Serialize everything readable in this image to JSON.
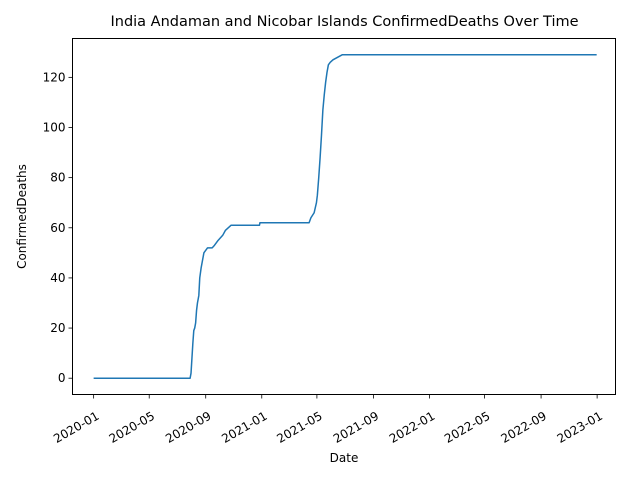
{
  "chart_data": {
    "type": "line",
    "title": "India Andaman and Nicobar Islands ConfirmedDeaths Over Time",
    "xlabel": "Date",
    "ylabel": "ConfirmedDeaths",
    "x_range": [
      "2019-11-16",
      "2023-02-10"
    ],
    "ylim": [
      -6.5,
      135.5
    ],
    "x_ticks": [
      {
        "date": "2020-01-01",
        "label": "2020-01"
      },
      {
        "date": "2020-05-01",
        "label": "2020-05"
      },
      {
        "date": "2020-09-01",
        "label": "2020-09"
      },
      {
        "date": "2021-01-01",
        "label": "2021-01"
      },
      {
        "date": "2021-05-01",
        "label": "2021-05"
      },
      {
        "date": "2021-09-01",
        "label": "2021-09"
      },
      {
        "date": "2022-01-01",
        "label": "2022-01"
      },
      {
        "date": "2022-05-01",
        "label": "2022-05"
      },
      {
        "date": "2022-09-01",
        "label": "2022-09"
      },
      {
        "date": "2023-01-01",
        "label": "2023-01"
      }
    ],
    "y_ticks": [
      0,
      20,
      40,
      60,
      80,
      100,
      120
    ],
    "grid": false,
    "line_color": "#1f77b4",
    "series": [
      {
        "name": "",
        "points": [
          [
            "2020-01-01",
            0
          ],
          [
            "2020-07-29",
            0
          ],
          [
            "2020-07-31",
            2
          ],
          [
            "2020-08-02",
            8
          ],
          [
            "2020-08-04",
            14
          ],
          [
            "2020-08-06",
            19
          ],
          [
            "2020-08-08",
            20
          ],
          [
            "2020-08-10",
            22
          ],
          [
            "2020-08-12",
            27
          ],
          [
            "2020-08-14",
            30
          ],
          [
            "2020-08-17",
            33
          ],
          [
            "2020-08-19",
            40
          ],
          [
            "2020-08-22",
            44
          ],
          [
            "2020-08-25",
            47
          ],
          [
            "2020-08-28",
            50
          ],
          [
            "2020-09-01",
            51
          ],
          [
            "2020-09-05",
            52
          ],
          [
            "2020-09-15",
            52
          ],
          [
            "2020-09-20",
            53
          ],
          [
            "2020-09-28",
            55
          ],
          [
            "2020-10-08",
            57
          ],
          [
            "2020-10-14",
            59
          ],
          [
            "2020-10-20",
            60
          ],
          [
            "2020-10-26",
            61
          ],
          [
            "2020-12-27",
            61
          ],
          [
            "2020-12-28",
            62
          ],
          [
            "2021-04-14",
            62
          ],
          [
            "2021-04-18",
            64
          ],
          [
            "2021-04-25",
            66
          ],
          [
            "2021-04-30",
            70
          ],
          [
            "2021-05-02",
            73
          ],
          [
            "2021-05-05",
            80
          ],
          [
            "2021-05-08",
            88
          ],
          [
            "2021-05-11",
            97
          ],
          [
            "2021-05-14",
            107
          ],
          [
            "2021-05-17",
            113
          ],
          [
            "2021-05-20",
            118
          ],
          [
            "2021-05-23",
            122
          ],
          [
            "2021-05-26",
            125
          ],
          [
            "2021-05-30",
            126
          ],
          [
            "2021-06-05",
            127
          ],
          [
            "2021-06-15",
            128
          ],
          [
            "2021-06-25",
            129
          ],
          [
            "2022-12-31",
            129
          ]
        ]
      }
    ]
  }
}
